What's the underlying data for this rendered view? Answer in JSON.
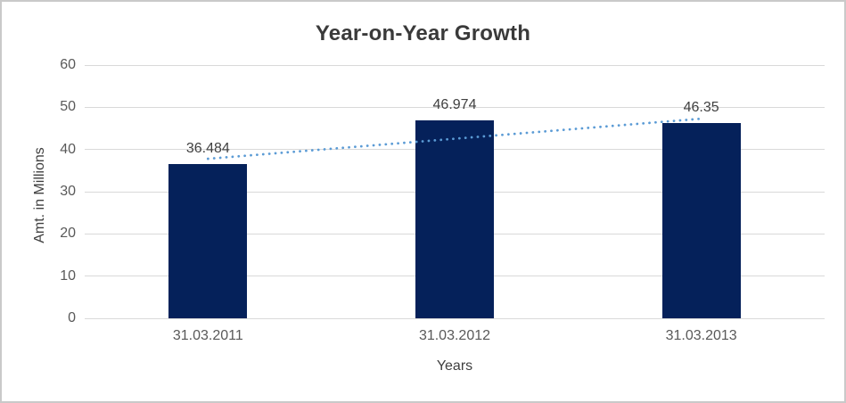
{
  "chart_data": {
    "type": "bar",
    "title": "Year-on-Year Growth",
    "categories": [
      "31.03.2011",
      "31.03.2012",
      "31.03.2013"
    ],
    "values": [
      36.484,
      46.974,
      46.35
    ],
    "data_labels": [
      "36.484",
      "46.974",
      "46.35"
    ],
    "xlabel": "Years",
    "ylabel": "Amt. in Millions",
    "ylim": [
      0,
      60
    ],
    "yticks": [
      0,
      10,
      20,
      30,
      40,
      50,
      60
    ],
    "grid": true,
    "legend_position": "none",
    "bar_color": "#05215a",
    "gridline_color": "#d9d9d9",
    "trendline": {
      "style": "dotted",
      "color": "#5b9bd5",
      "start_value": 37.8,
      "end_value": 47.3
    },
    "colors": {
      "title_text": "#3a3a3a",
      "tick_text": "#595959",
      "data_label_text": "#404040",
      "frame_border": "#c9c9c9",
      "background": "#ffffff"
    }
  }
}
